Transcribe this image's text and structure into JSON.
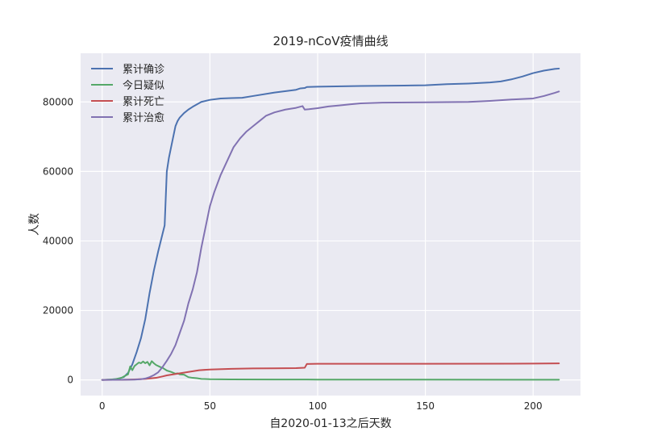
{
  "chart_data": {
    "type": "line",
    "title": "2019-nCoV疫情曲线",
    "xlabel": "自2020-01-13之后天数",
    "ylabel": "人数",
    "xlim": [
      -10,
      222
    ],
    "ylim": [
      -4500,
      94000
    ],
    "x_ticks": [
      0,
      50,
      100,
      150,
      200
    ],
    "y_ticks": [
      0,
      20000,
      40000,
      60000,
      80000
    ],
    "grid": true,
    "legend_position": "top-left",
    "series": [
      {
        "name": "累计确诊",
        "color": "#4c72b0",
        "points": [
          [
            0,
            0
          ],
          [
            4,
            100
          ],
          [
            7,
            300
          ],
          [
            10,
            800
          ],
          [
            12,
            2000
          ],
          [
            14,
            4500
          ],
          [
            16,
            8000
          ],
          [
            18,
            12000
          ],
          [
            20,
            17500
          ],
          [
            22,
            25000
          ],
          [
            24,
            31500
          ],
          [
            26,
            37000
          ],
          [
            28,
            42000
          ],
          [
            29,
            44500
          ],
          [
            30,
            60000
          ],
          [
            31,
            64000
          ],
          [
            32,
            67000
          ],
          [
            33,
            70000
          ],
          [
            34,
            73000
          ],
          [
            35,
            74500
          ],
          [
            36,
            75500
          ],
          [
            38,
            76800
          ],
          [
            40,
            77800
          ],
          [
            42,
            78600
          ],
          [
            44,
            79300
          ],
          [
            46,
            80000
          ],
          [
            48,
            80300
          ],
          [
            50,
            80600
          ],
          [
            55,
            81000
          ],
          [
            60,
            81100
          ],
          [
            65,
            81200
          ],
          [
            70,
            81700
          ],
          [
            80,
            82700
          ],
          [
            90,
            83500
          ],
          [
            92,
            83900
          ],
          [
            94,
            84000
          ],
          [
            95,
            84300
          ],
          [
            100,
            84400
          ],
          [
            120,
            84600
          ],
          [
            140,
            84700
          ],
          [
            150,
            84800
          ],
          [
            160,
            85100
          ],
          [
            170,
            85300
          ],
          [
            180,
            85600
          ],
          [
            185,
            85900
          ],
          [
            190,
            86500
          ],
          [
            195,
            87300
          ],
          [
            200,
            88300
          ],
          [
            205,
            89000
          ],
          [
            210,
            89500
          ],
          [
            212,
            89600
          ]
        ]
      },
      {
        "name": "今日疑似",
        "color": "#55a868",
        "points": [
          [
            0,
            0
          ],
          [
            6,
            200
          ],
          [
            9,
            600
          ],
          [
            11,
            1300
          ],
          [
            12,
            1600
          ],
          [
            13,
            3900
          ],
          [
            14,
            2800
          ],
          [
            15,
            4000
          ],
          [
            16,
            4500
          ],
          [
            17,
            5000
          ],
          [
            18,
            4800
          ],
          [
            19,
            5300
          ],
          [
            20,
            4800
          ],
          [
            21,
            5200
          ],
          [
            22,
            4200
          ],
          [
            23,
            5400
          ],
          [
            24,
            4800
          ],
          [
            25,
            4300
          ],
          [
            27,
            3700
          ],
          [
            28,
            3500
          ],
          [
            30,
            2700
          ],
          [
            32,
            2300
          ],
          [
            34,
            1800
          ],
          [
            35,
            1900
          ],
          [
            36,
            1600
          ],
          [
            38,
            1500
          ],
          [
            40,
            800
          ],
          [
            42,
            600
          ],
          [
            44,
            500
          ],
          [
            46,
            300
          ],
          [
            50,
            200
          ],
          [
            60,
            150
          ],
          [
            80,
            120
          ],
          [
            100,
            100
          ],
          [
            150,
            80
          ],
          [
            200,
            60
          ],
          [
            212,
            60
          ]
        ]
      },
      {
        "name": "累计死亡",
        "color": "#c44e52",
        "points": [
          [
            0,
            0
          ],
          [
            10,
            50
          ],
          [
            15,
            150
          ],
          [
            20,
            300
          ],
          [
            25,
            600
          ],
          [
            28,
            1000
          ],
          [
            30,
            1300
          ],
          [
            35,
            1800
          ],
          [
            40,
            2300
          ],
          [
            45,
            2800
          ],
          [
            50,
            3000
          ],
          [
            60,
            3200
          ],
          [
            70,
            3300
          ],
          [
            80,
            3350
          ],
          [
            90,
            3400
          ],
          [
            94,
            3500
          ],
          [
            95,
            4600
          ],
          [
            100,
            4650
          ],
          [
            150,
            4650
          ],
          [
            200,
            4700
          ],
          [
            212,
            4750
          ]
        ]
      },
      {
        "name": "累计治愈",
        "color": "#8172b2",
        "points": [
          [
            0,
            0
          ],
          [
            10,
            50
          ],
          [
            15,
            100
          ],
          [
            18,
            200
          ],
          [
            20,
            400
          ],
          [
            22,
            800
          ],
          [
            24,
            1400
          ],
          [
            26,
            2200
          ],
          [
            28,
            3700
          ],
          [
            30,
            5500
          ],
          [
            32,
            7500
          ],
          [
            34,
            10000
          ],
          [
            36,
            13500
          ],
          [
            38,
            17000
          ],
          [
            40,
            22000
          ],
          [
            42,
            26000
          ],
          [
            44,
            31000
          ],
          [
            46,
            38000
          ],
          [
            48,
            44000
          ],
          [
            50,
            50000
          ],
          [
            52,
            54000
          ],
          [
            55,
            59000
          ],
          [
            58,
            63000
          ],
          [
            61,
            67000
          ],
          [
            64,
            69500
          ],
          [
            67,
            71500
          ],
          [
            70,
            73000
          ],
          [
            73,
            74500
          ],
          [
            76,
            76000
          ],
          [
            80,
            77000
          ],
          [
            85,
            77800
          ],
          [
            90,
            78300
          ],
          [
            93,
            78800
          ],
          [
            94,
            77800
          ],
          [
            96,
            77900
          ],
          [
            100,
            78200
          ],
          [
            105,
            78700
          ],
          [
            110,
            79000
          ],
          [
            115,
            79300
          ],
          [
            120,
            79600
          ],
          [
            130,
            79800
          ],
          [
            150,
            79900
          ],
          [
            170,
            80000
          ],
          [
            180,
            80300
          ],
          [
            190,
            80700
          ],
          [
            200,
            81000
          ],
          [
            205,
            81700
          ],
          [
            210,
            82600
          ],
          [
            212,
            83000
          ]
        ]
      }
    ]
  }
}
